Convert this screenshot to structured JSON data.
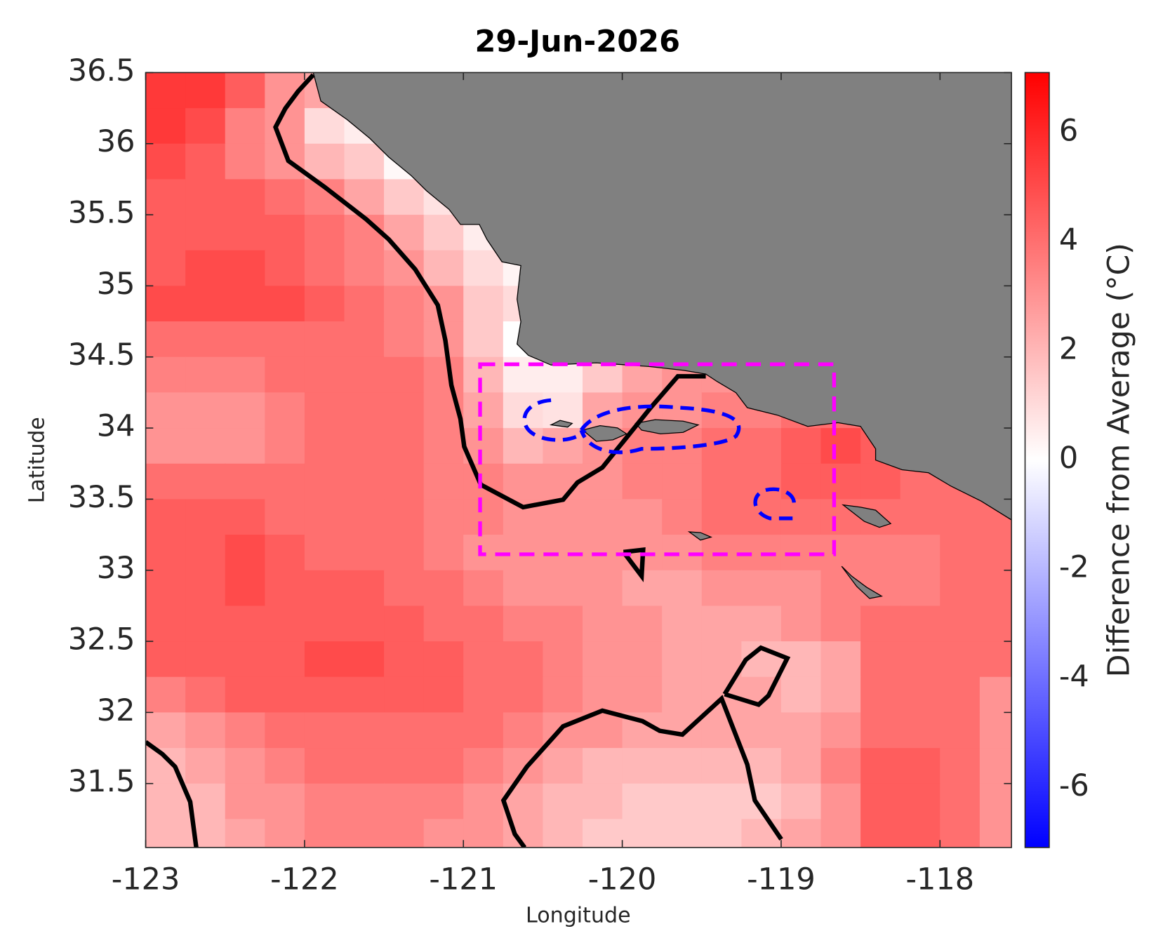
{
  "chart_data": {
    "type": "heatmap",
    "title": "29-Jun-2026",
    "x_label": "Longitude",
    "y_label": "Latitude",
    "colorbar_label": "Difference from Average (°C)",
    "xlim": [
      -123,
      -117.55
    ],
    "ylim": [
      31.05,
      36.5
    ],
    "xticks": [
      -123,
      -122,
      -121,
      -120,
      -119,
      -118
    ],
    "yticks": [
      31.5,
      32,
      32.5,
      33,
      33.5,
      34,
      34.5,
      35,
      35.5,
      36,
      36.5
    ],
    "clim": [
      -7.1,
      7.1
    ],
    "cticks": [
      -6,
      -4,
      -2,
      0,
      2,
      4,
      6
    ],
    "cmap_colors": [
      "#0000ff",
      "#ffffff",
      "#ff0000"
    ],
    "land_color": "#808080",
    "x": [
      -122.875,
      -122.625,
      -122.375,
      -122.125,
      -121.875,
      -121.625,
      -121.375,
      -121.125,
      -120.875,
      -120.625,
      -120.375,
      -120.125,
      -119.875,
      -119.625,
      -119.375,
      -119.125,
      -118.875,
      -118.625,
      -118.375,
      -118.125,
      -117.875,
      -117.625
    ],
    "y": [
      36.375,
      36.125,
      35.875,
      35.625,
      35.375,
      35.125,
      34.875,
      34.625,
      34.375,
      34.125,
      33.875,
      33.625,
      33.375,
      33.125,
      32.875,
      32.625,
      32.375,
      32.125,
      31.875,
      31.625,
      31.375,
      31.125
    ],
    "values": [
      [
        5.5,
        5.5,
        4.5,
        3,
        2.5,
        null,
        null,
        null,
        null,
        null,
        null,
        null,
        null,
        null,
        null,
        null,
        null,
        null,
        null,
        null,
        null,
        null
      ],
      [
        5.5,
        5,
        3.5,
        3,
        1,
        0.5,
        null,
        null,
        null,
        null,
        null,
        null,
        null,
        null,
        null,
        null,
        null,
        null,
        null,
        null,
        null,
        null
      ],
      [
        5,
        4.5,
        3.5,
        3,
        2,
        1.5,
        0.2,
        null,
        null,
        null,
        null,
        null,
        null,
        null,
        null,
        null,
        null,
        null,
        null,
        null,
        null,
        null
      ],
      [
        4.5,
        4.5,
        4.5,
        4,
        3.5,
        2.5,
        1.5,
        0.8,
        null,
        null,
        null,
        null,
        null,
        null,
        null,
        null,
        null,
        null,
        null,
        null,
        null,
        null
      ],
      [
        4.5,
        4.5,
        4.5,
        4.5,
        4,
        3.5,
        2.5,
        1.5,
        0.5,
        null,
        null,
        null,
        null,
        null,
        null,
        null,
        null,
        null,
        null,
        null,
        null,
        null
      ],
      [
        4.5,
        5,
        5,
        4.5,
        4,
        3.5,
        3,
        2,
        1,
        0.3,
        null,
        null,
        null,
        null,
        null,
        null,
        null,
        null,
        null,
        null,
        null,
        null
      ],
      [
        5,
        5,
        5,
        5,
        4.5,
        4,
        3.5,
        3,
        1.5,
        1,
        null,
        null,
        null,
        null,
        null,
        null,
        null,
        null,
        null,
        null,
        null,
        null
      ],
      [
        4,
        4,
        4,
        4,
        4,
        4,
        3.5,
        3,
        1.5,
        0,
        null,
        null,
        null,
        null,
        null,
        null,
        null,
        null,
        null,
        null,
        null,
        null
      ],
      [
        3.5,
        3.5,
        3.5,
        4,
        4,
        4,
        4,
        3.5,
        2,
        0.5,
        0.5,
        1.5,
        2.5,
        3,
        3,
        null,
        null,
        null,
        null,
        null,
        null,
        null
      ],
      [
        3,
        3,
        3,
        3.5,
        4,
        4,
        4,
        3.5,
        2.5,
        1,
        0.8,
        2.5,
        3,
        3,
        3.5,
        3.5,
        4,
        4,
        null,
        null,
        null,
        null
      ],
      [
        3,
        3,
        3,
        3.5,
        4,
        4,
        4,
        3.5,
        3,
        2,
        2.5,
        3,
        3.5,
        3.5,
        4,
        4,
        4.5,
        5,
        4.5,
        4.5,
        null,
        null
      ],
      [
        4,
        4,
        4,
        4,
        4,
        4,
        4,
        3.5,
        3.5,
        3,
        3,
        3,
        3.5,
        3.5,
        4,
        4,
        4.5,
        4.5,
        4.5,
        4,
        4,
        null
      ],
      [
        4.5,
        4.5,
        4.5,
        4,
        4,
        4,
        4,
        3.5,
        3.5,
        3,
        3,
        3,
        3,
        3.5,
        4,
        4,
        4,
        4,
        4,
        4,
        4,
        4
      ],
      [
        4.5,
        4.5,
        5,
        4.5,
        4,
        4,
        4,
        3.5,
        3,
        3,
        3,
        3,
        3,
        3,
        3.5,
        3.5,
        3.5,
        3.5,
        3.5,
        3.5,
        4,
        4
      ],
      [
        4.5,
        4.5,
        5,
        4.5,
        4.5,
        4.5,
        4,
        4,
        3.5,
        3,
        3,
        3,
        2.5,
        2.5,
        3,
        3,
        3,
        3.5,
        3.5,
        3.5,
        4,
        4
      ],
      [
        4.5,
        4.5,
        4.5,
        4.5,
        4.5,
        4.5,
        4.5,
        4,
        4,
        3.5,
        3.5,
        3,
        3,
        2.5,
        2.5,
        2.5,
        3,
        3.5,
        4,
        4,
        4,
        4
      ],
      [
        4.5,
        4.5,
        4.5,
        4.5,
        5,
        5,
        4.5,
        4.5,
        4,
        4,
        3.5,
        3,
        3,
        2.5,
        2.5,
        2,
        2,
        2.5,
        4,
        4,
        4,
        4
      ],
      [
        3.5,
        4,
        4.5,
        4.5,
        4.5,
        4.5,
        4.5,
        4.5,
        4,
        4,
        3.5,
        3,
        3,
        2.5,
        2.5,
        2.5,
        2,
        2.5,
        4,
        4,
        4,
        3
      ],
      [
        2.5,
        3,
        3.5,
        4,
        4,
        4,
        4,
        4,
        4,
        3.5,
        3,
        3,
        2.5,
        2.5,
        2.5,
        2.5,
        2.5,
        3,
        4,
        4,
        4,
        3
      ],
      [
        2,
        2.5,
        3,
        3.5,
        4,
        4,
        4,
        4,
        3.5,
        3,
        2.5,
        2,
        2,
        2,
        2,
        2,
        2.5,
        3.5,
        4.5,
        4.5,
        4,
        3
      ],
      [
        2,
        2,
        3,
        3,
        3.5,
        3.5,
        3.5,
        3.5,
        3,
        2.5,
        2,
        2,
        1.5,
        1.5,
        1.5,
        1.5,
        2,
        3,
        4.5,
        4.5,
        4,
        3
      ],
      [
        2,
        2,
        2.5,
        3,
        3.5,
        3.5,
        3.5,
        3,
        3,
        2.5,
        2,
        1.5,
        1.5,
        1.5,
        1.5,
        2,
        2.5,
        3,
        4.5,
        4.5,
        4,
        3
      ]
    ]
  }
}
